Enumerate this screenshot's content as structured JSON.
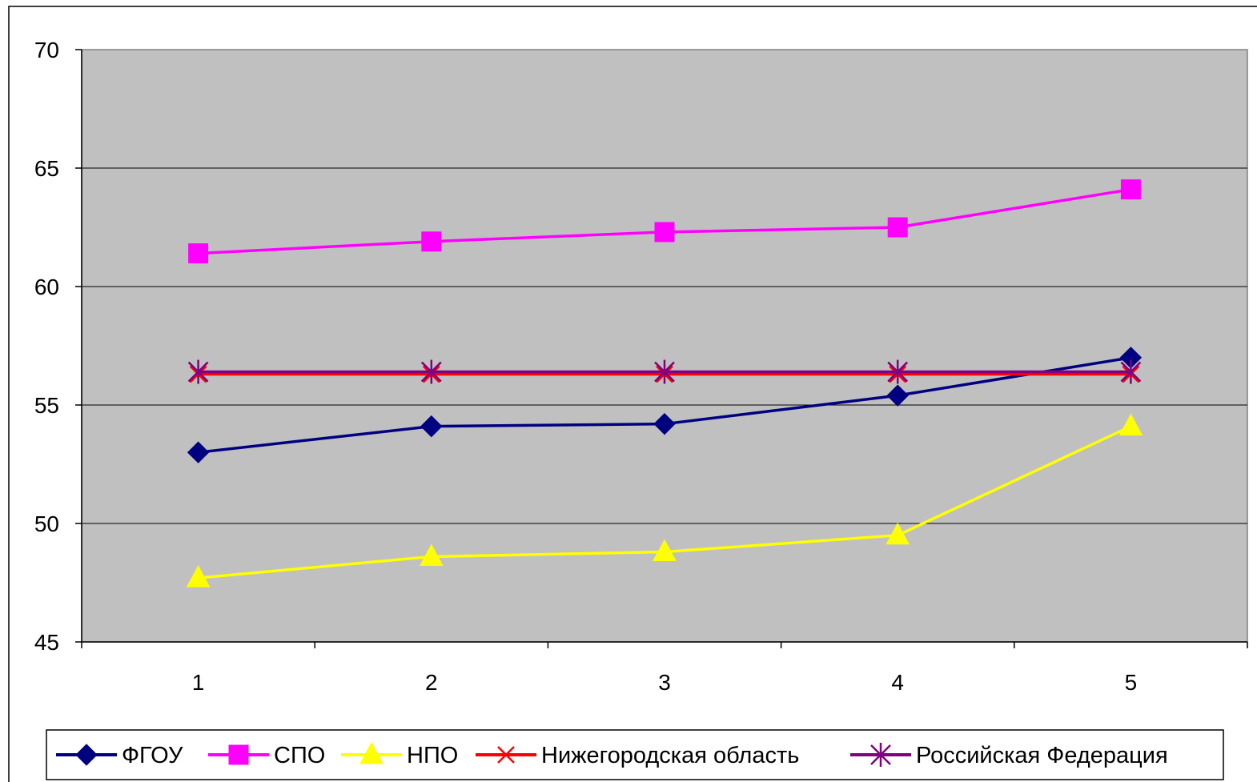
{
  "chart_data": {
    "type": "line",
    "title": "",
    "xlabel": "",
    "ylabel": "",
    "categories": [
      "1",
      "2",
      "3",
      "4",
      "5"
    ],
    "ylim": [
      45,
      70
    ],
    "yticks": [
      45,
      50,
      55,
      60,
      65,
      70
    ],
    "grid": true,
    "legend_position": "bottom",
    "plot_background": "#c0c0c0",
    "series": [
      {
        "name": "ФГОУ",
        "values": [
          53.0,
          54.1,
          54.2,
          55.4,
          57.0
        ],
        "color": "#000080",
        "marker": "diamond"
      },
      {
        "name": "СПО",
        "values": [
          61.4,
          61.9,
          62.3,
          62.5,
          64.1
        ],
        "color": "#ff00ff",
        "marker": "square"
      },
      {
        "name": "НПО",
        "values": [
          47.7,
          48.6,
          48.8,
          49.5,
          54.1
        ],
        "color": "#ffff00",
        "marker": "triangle"
      },
      {
        "name": "Нижегородская область",
        "values": [
          56.3,
          56.3,
          56.3,
          56.3,
          56.3
        ],
        "color": "#ff0000",
        "marker": "x"
      },
      {
        "name": "Российская Федерация",
        "values": [
          56.4,
          56.4,
          56.4,
          56.4,
          56.4
        ],
        "color": "#800080",
        "marker": "star"
      }
    ]
  }
}
